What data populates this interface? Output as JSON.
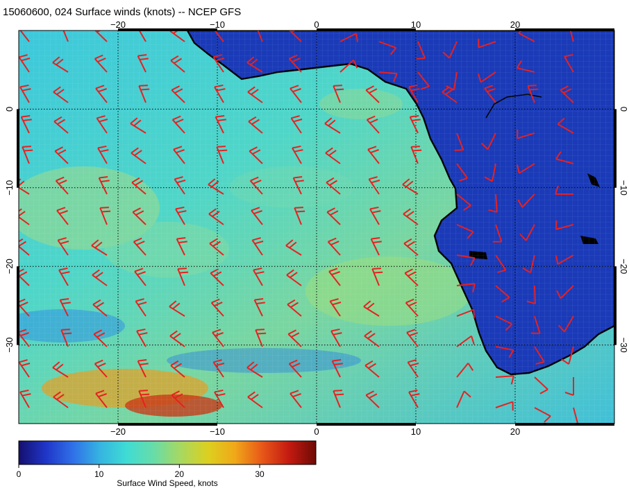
{
  "title": "15060600, 024 Surface winds (knots) -- NCEP GFS",
  "map": {
    "lon_range": [
      -30,
      30
    ],
    "lat_range": [
      -40,
      10
    ],
    "lon_ticks": [
      {
        "value": -20,
        "label": "−20"
      },
      {
        "value": -10,
        "label": "−10"
      },
      {
        "value": 0,
        "label": "0"
      },
      {
        "value": 10,
        "label": "10"
      },
      {
        "value": 20,
        "label": "20"
      }
    ],
    "lat_ticks": [
      {
        "value": 0,
        "label": "0"
      },
      {
        "value": -10,
        "label": "−10"
      },
      {
        "value": -20,
        "label": "−20"
      },
      {
        "value": -30,
        "label": "−30"
      }
    ],
    "gridlines": "dotted",
    "barb_color": "#e82020",
    "coastline_color": "#000000"
  },
  "colorbar": {
    "label": "Surface Wind Speed, knots",
    "range": [
      0,
      37
    ],
    "ticks": [
      {
        "value": 0,
        "label": "0"
      },
      {
        "value": 10,
        "label": "10"
      },
      {
        "value": 20,
        "label": "20"
      },
      {
        "value": 30,
        "label": "30"
      }
    ],
    "colors": [
      "#15106e",
      "#1f35c8",
      "#2f70e8",
      "#35b4e0",
      "#3fdcd4",
      "#68dca8",
      "#a8d860",
      "#dcd020",
      "#f0a818",
      "#e85818",
      "#c41a10",
      "#6e0a06"
    ]
  }
}
